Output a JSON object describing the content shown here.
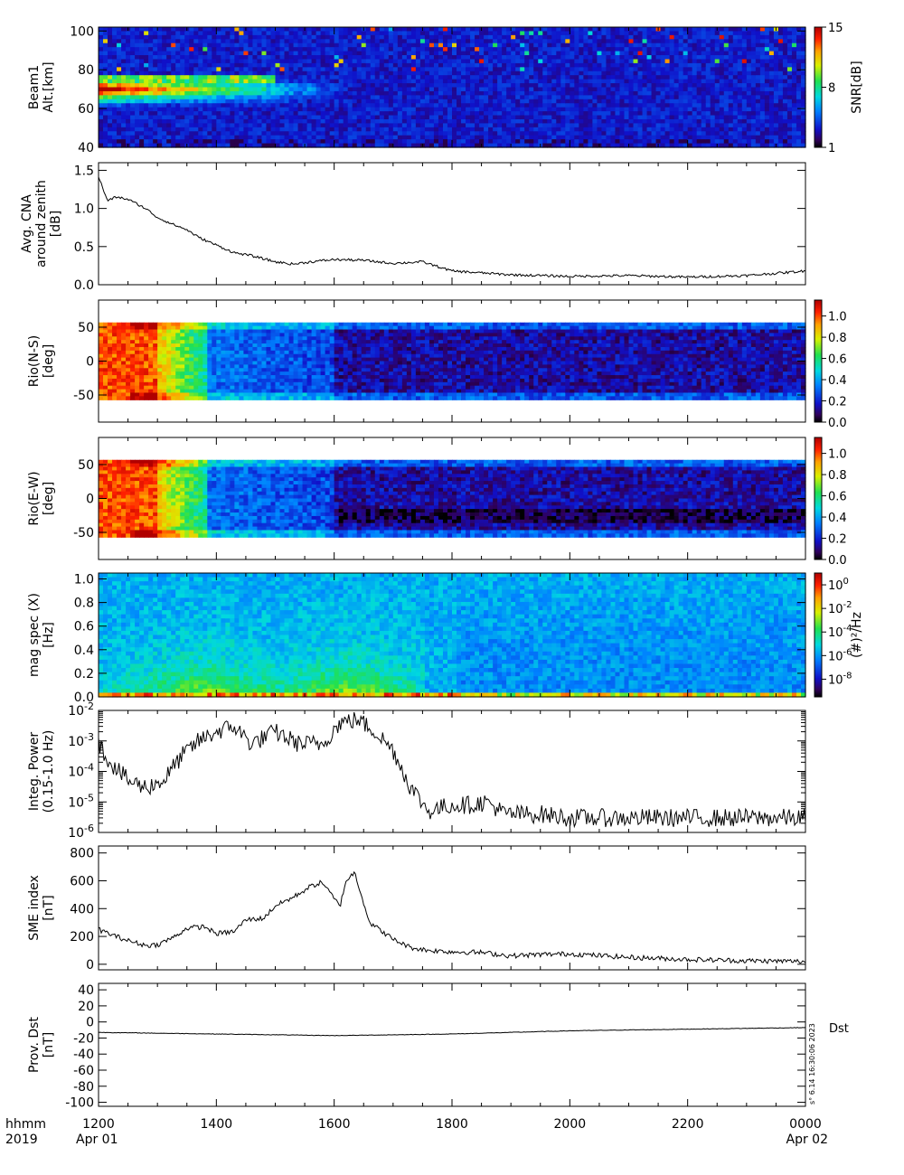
{
  "chart_data": [
    {
      "type": "heatmap",
      "ylabel_lines": [
        "Beam1",
        "Alt.[km]"
      ],
      "ylim": [
        40,
        102
      ],
      "yticks": [
        "100",
        "80",
        "60",
        "40"
      ],
      "colorbar": {
        "label": "SNR[dB]",
        "ticks": [
          "15",
          "8",
          "1"
        ],
        "range": [
          1,
          15
        ],
        "scale": "linear"
      }
    },
    {
      "type": "line",
      "ylabel_lines": [
        "Avg. CNA",
        "around zenith",
        "[dB]"
      ],
      "ylim": [
        0,
        1.6
      ],
      "yticks": [
        "1.5",
        "1.0",
        "0.5",
        "0.0"
      ],
      "x_hours": [
        0,
        0.15,
        0.3,
        0.5,
        0.8,
        1.0,
        1.3,
        1.5,
        1.7,
        2.0,
        2.3,
        2.6,
        3.0,
        3.3,
        3.6,
        4.0,
        4.5,
        5.0,
        5.5,
        6.0,
        7.0,
        8.0,
        9.0,
        10.0,
        11.0,
        12.0
      ],
      "values": [
        1.42,
        1.1,
        1.15,
        1.12,
        1.0,
        0.88,
        0.78,
        0.72,
        0.62,
        0.52,
        0.42,
        0.38,
        0.3,
        0.27,
        0.3,
        0.33,
        0.32,
        0.28,
        0.3,
        0.18,
        0.13,
        0.11,
        0.12,
        0.1,
        0.12,
        0.18
      ]
    },
    {
      "type": "heatmap",
      "ylabel_lines": [
        "Rio(N-S)",
        "[deg]"
      ],
      "ylim": [
        -90,
        90
      ],
      "yticks": [
        "50",
        "0",
        "-50"
      ],
      "colorbar": {
        "ticks": [
          "1.0",
          "0.8",
          "0.6",
          "0.4",
          "0.2",
          "0.0"
        ],
        "range": [
          0,
          1.15
        ],
        "scale": "linear"
      }
    },
    {
      "type": "heatmap",
      "ylabel_lines": [
        "Rio(E-W)",
        "[deg]"
      ],
      "ylim": [
        -90,
        90
      ],
      "yticks": [
        "50",
        "0",
        "-50"
      ],
      "colorbar": {
        "ticks": [
          "1.0",
          "0.8",
          "0.6",
          "0.4",
          "0.2",
          "0.0"
        ],
        "range": [
          0,
          1.15
        ],
        "scale": "linear"
      }
    },
    {
      "type": "heatmap",
      "ylabel_lines": [
        "mag spec (X)",
        "[Hz]"
      ],
      "ylim": [
        0,
        1.05
      ],
      "yticks": [
        "1.0",
        "0.8",
        "0.6",
        "0.4",
        "0.2",
        "0.0"
      ],
      "colorbar": {
        "label": "(#)²/Hz",
        "ticks": [
          {
            "base": "10",
            "exp": "0"
          },
          {
            "base": "10",
            "exp": "-2"
          },
          {
            "base": "10",
            "exp": "-4"
          },
          {
            "base": "10",
            "exp": "-6"
          },
          {
            "base": "10",
            "exp": "-8"
          }
        ],
        "scale": "log"
      }
    },
    {
      "type": "line",
      "scale": "log",
      "ylabel_lines": [
        "Integ. Power",
        "(0.15-1.0 Hz)"
      ],
      "ylim": [
        1e-06,
        0.01
      ],
      "yticks": [
        {
          "base": "10",
          "exp": "-2"
        },
        {
          "base": "10",
          "exp": "-3"
        },
        {
          "base": "10",
          "exp": "-4"
        },
        {
          "base": "10",
          "exp": "-5"
        },
        {
          "base": "10",
          "exp": "-6"
        }
      ],
      "x_hours": [
        0,
        0.2,
        0.5,
        0.8,
        1.1,
        1.4,
        1.7,
        2.0,
        2.3,
        2.6,
        3.0,
        3.4,
        3.8,
        4.1,
        4.4,
        4.7,
        5.0,
        5.3,
        5.6,
        6.0,
        6.3,
        6.6,
        6.9,
        7.2,
        7.5,
        8.0,
        9.0,
        10.0,
        11.0,
        11.5,
        12.0
      ],
      "values": [
        0.0008,
        0.0002,
        5e-05,
        3e-05,
        5e-05,
        0.0003,
        0.001,
        0.002,
        0.003,
        0.0008,
        0.002,
        0.0008,
        0.0008,
        0.004,
        0.005,
        0.002,
        0.0005,
        3e-05,
        5e-06,
        8e-06,
        8e-06,
        1e-05,
        4e-06,
        4e-06,
        4e-06,
        3e-06,
        3e-06,
        3e-06,
        3e-06,
        3e-06,
        3e-06
      ]
    },
    {
      "type": "line",
      "ylabel_lines": [
        "SME index",
        "[nT]"
      ],
      "ylim": [
        -40,
        850
      ],
      "yticks": [
        "800",
        "600",
        "400",
        "200",
        "0"
      ],
      "x_hours": [
        0,
        0.3,
        0.5,
        0.8,
        1.0,
        1.3,
        1.5,
        1.8,
        2.0,
        2.3,
        2.5,
        2.8,
        3.0,
        3.3,
        3.6,
        3.8,
        4.0,
        4.1,
        4.2,
        4.35,
        4.6,
        5.0,
        5.3,
        5.6,
        6.0,
        6.5,
        7.0,
        7.5,
        8.0,
        9.0,
        10.0,
        11.0,
        11.7,
        12.0
      ],
      "values": [
        250,
        200,
        170,
        135,
        140,
        200,
        260,
        270,
        220,
        235,
        320,
        330,
        420,
        480,
        560,
        590,
        470,
        420,
        600,
        660,
        300,
        180,
        120,
        100,
        90,
        85,
        60,
        70,
        75,
        50,
        35,
        25,
        22,
        20
      ]
    },
    {
      "type": "line",
      "ylabel_lines": [
        "Prov. Dst",
        "[nT]"
      ],
      "ylim": [
        -105,
        48
      ],
      "yticks": [
        "40",
        "20",
        "0",
        "-20",
        "-40",
        "-60",
        "-80",
        "-100"
      ],
      "x_hours": [
        0,
        1,
        2,
        3,
        4,
        5,
        6,
        7,
        8,
        9,
        10,
        11,
        12
      ],
      "values": [
        -13,
        -14,
        -15,
        -16,
        -17,
        -16,
        -15,
        -13,
        -11,
        -10,
        -9,
        -8,
        -7
      ],
      "series": [
        {
          "name": "Dst"
        }
      ],
      "side_note": "s° 6.14 16:30:06 2023"
    }
  ],
  "x_axis": {
    "row1_label": "hhmm",
    "row2_label": "2019",
    "ticks": [
      "1200",
      "1400",
      "1600",
      "1800",
      "2000",
      "2200",
      "0000"
    ],
    "start_date": "Apr 01",
    "end_date": "Apr 02"
  },
  "colors": {
    "plot_line": "#000000",
    "axis": "#000000"
  }
}
